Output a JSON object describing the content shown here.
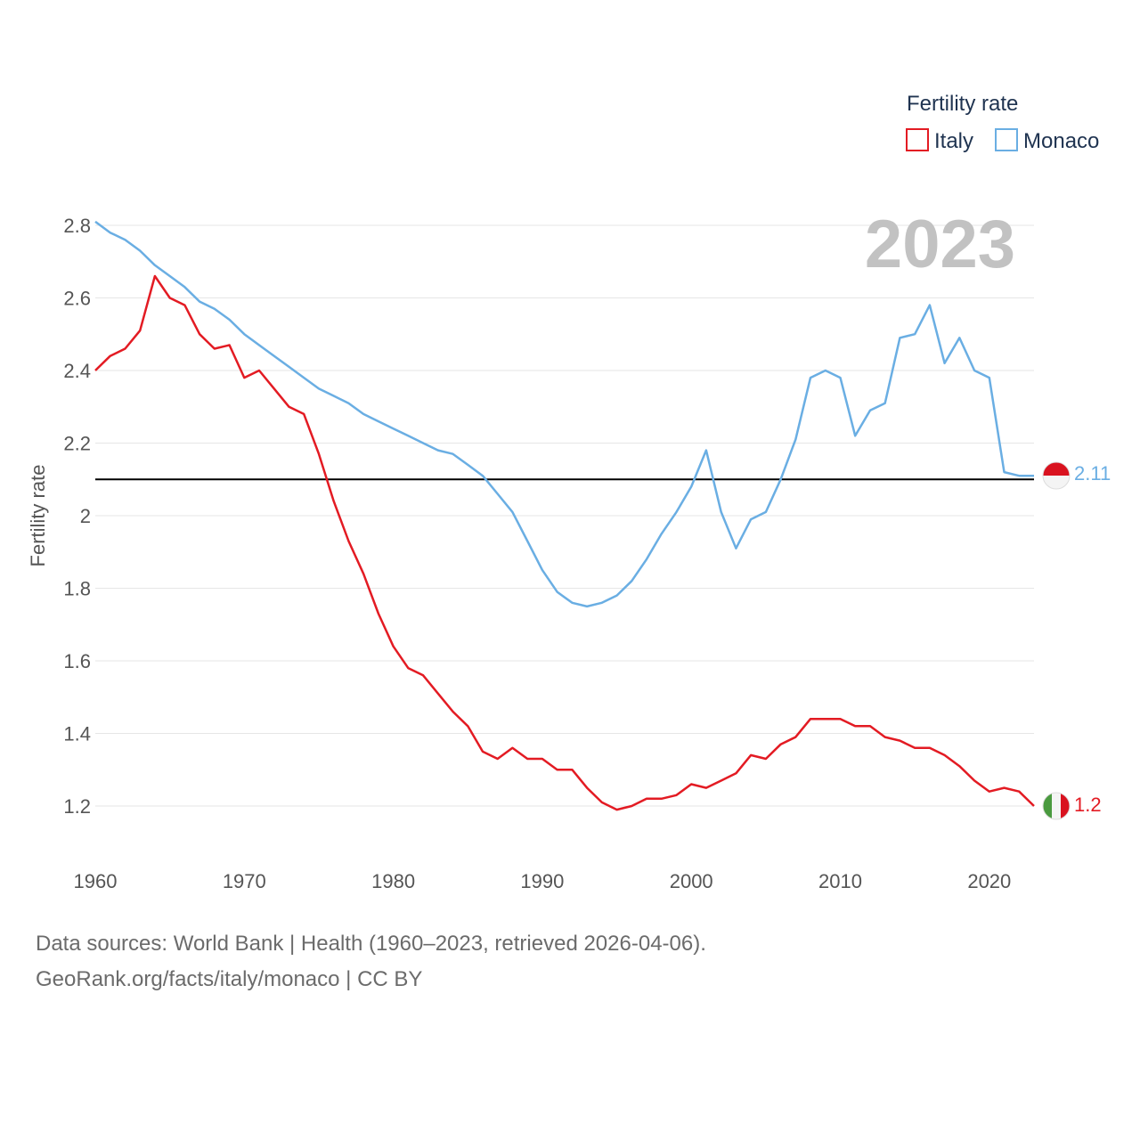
{
  "chart_data": {
    "type": "line",
    "title": "Fertility rate",
    "ylabel": "Fertility rate",
    "xlabel": "",
    "xlim": [
      1960,
      2023
    ],
    "ylim": [
      1.05,
      2.85
    ],
    "x_ticks": [
      1960,
      1970,
      1980,
      1990,
      2000,
      2010,
      2020
    ],
    "y_ticks": [
      1.2,
      1.4,
      1.6,
      1.8,
      2,
      2.2,
      2.4,
      2.6,
      2.8
    ],
    "y_tick_labels": [
      "1.2",
      "1.4",
      "1.6",
      "1.8",
      "2",
      "2.2",
      "2.4",
      "2.6",
      "2.8"
    ],
    "reference_line": 2.1,
    "current_year": "2023",
    "x": [
      1960,
      1961,
      1962,
      1963,
      1964,
      1965,
      1966,
      1967,
      1968,
      1969,
      1970,
      1971,
      1972,
      1973,
      1974,
      1975,
      1976,
      1977,
      1978,
      1979,
      1980,
      1981,
      1982,
      1983,
      1984,
      1985,
      1986,
      1987,
      1988,
      1989,
      1990,
      1991,
      1992,
      1993,
      1994,
      1995,
      1996,
      1997,
      1998,
      1999,
      2000,
      2001,
      2002,
      2003,
      2004,
      2005,
      2006,
      2007,
      2008,
      2009,
      2010,
      2011,
      2012,
      2013,
      2014,
      2015,
      2016,
      2017,
      2018,
      2019,
      2020,
      2021,
      2022,
      2023
    ],
    "series": [
      {
        "name": "Italy",
        "color": "#e31b23",
        "end_label": "1.2",
        "values": [
          2.4,
          2.44,
          2.46,
          2.51,
          2.66,
          2.6,
          2.58,
          2.5,
          2.46,
          2.47,
          2.38,
          2.4,
          2.35,
          2.3,
          2.28,
          2.17,
          2.04,
          1.93,
          1.84,
          1.73,
          1.64,
          1.58,
          1.56,
          1.51,
          1.46,
          1.42,
          1.35,
          1.33,
          1.36,
          1.33,
          1.33,
          1.3,
          1.3,
          1.25,
          1.21,
          1.19,
          1.2,
          1.22,
          1.22,
          1.23,
          1.26,
          1.25,
          1.27,
          1.29,
          1.34,
          1.33,
          1.37,
          1.39,
          1.44,
          1.44,
          1.44,
          1.42,
          1.42,
          1.39,
          1.38,
          1.36,
          1.36,
          1.34,
          1.31,
          1.27,
          1.24,
          1.25,
          1.24,
          1.2
        ]
      },
      {
        "name": "Monaco",
        "color": "#6aaee3",
        "end_label": "2.11",
        "values": [
          2.81,
          2.78,
          2.76,
          2.73,
          2.69,
          2.66,
          2.63,
          2.59,
          2.57,
          2.54,
          2.5,
          2.47,
          2.44,
          2.41,
          2.38,
          2.35,
          2.33,
          2.31,
          2.28,
          2.26,
          2.24,
          2.22,
          2.2,
          2.18,
          2.17,
          2.14,
          2.11,
          2.06,
          2.01,
          1.93,
          1.85,
          1.79,
          1.76,
          1.75,
          1.76,
          1.78,
          1.82,
          1.88,
          1.95,
          2.01,
          2.08,
          2.18,
          2.01,
          1.91,
          1.99,
          2.01,
          2.1,
          2.21,
          2.38,
          2.4,
          2.38,
          2.22,
          2.29,
          2.31,
          2.49,
          2.5,
          2.58,
          2.42,
          2.49,
          2.4,
          2.38,
          2.12,
          2.11,
          2.11
        ]
      }
    ]
  },
  "footer": {
    "line1": "Data sources: World Bank | Health (1960–2023, retrieved 2026-04-06).",
    "line2": "GeoRank.org/facts/italy/monaco | CC BY"
  }
}
